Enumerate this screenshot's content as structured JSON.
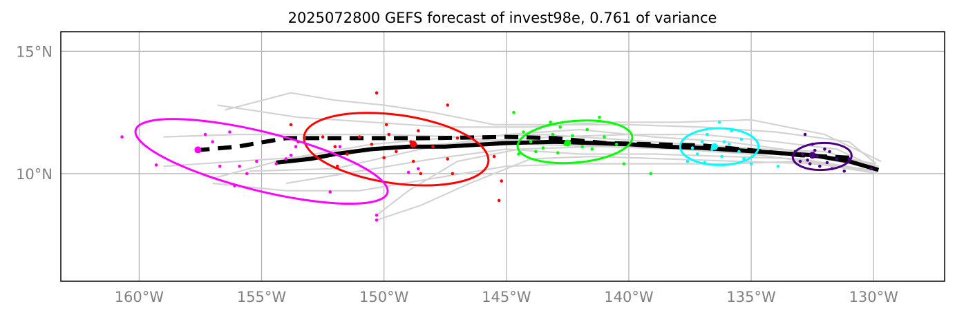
{
  "chart_data": {
    "type": "scatter",
    "title": "2025072800 GEFS forecast of invest98e, 0.761 of variance",
    "xlim": [
      -163.2,
      -127.1
    ],
    "ylim": [
      5.6,
      15.8
    ],
    "x_ticks": [
      -160,
      -155,
      -150,
      -145,
      -140,
      -135,
      -130
    ],
    "x_tick_labels": [
      "160°W",
      "155°W",
      "150°W",
      "145°W",
      "140°W",
      "135°W",
      "130°W"
    ],
    "y_ticks": [
      10,
      15
    ],
    "y_tick_labels": [
      "10°N",
      "15°N"
    ],
    "grid": true,
    "colors": {
      "ensemble": "#d3d3d3",
      "mean": "#000000",
      "groups": [
        "#4b0082",
        "#00ffff",
        "#00ff00",
        "#ff0000",
        "#ff00ff"
      ]
    },
    "ensemble_tracks": [
      [
        [
          -129.8,
          10.2
        ],
        [
          -131.5,
          11.0
        ],
        [
          -134,
          11.3
        ],
        [
          -137,
          11.6
        ],
        [
          -140,
          11.6
        ],
        [
          -143,
          11.5
        ],
        [
          -146.5,
          11.3
        ],
        [
          -150,
          11.0
        ],
        [
          -153,
          10.7
        ],
        [
          -156,
          10.5
        ],
        [
          -159,
          10.3
        ]
      ],
      [
        [
          -129.9,
          10.4
        ],
        [
          -131,
          11.3
        ],
        [
          -134,
          11.7
        ],
        [
          -137,
          11.9
        ],
        [
          -140,
          12.0
        ],
        [
          -143,
          12.0
        ],
        [
          -145.5,
          12.0
        ],
        [
          -148,
          12.5
        ],
        [
          -150,
          12.8
        ],
        [
          -152,
          13.0
        ],
        [
          -153.8,
          13.3
        ],
        [
          -156.5,
          12.6
        ]
      ],
      [
        [
          -129.8,
          10.0
        ],
        [
          -132,
          10.4
        ],
        [
          -135,
          10.8
        ],
        [
          -138,
          11.0
        ],
        [
          -141,
          11.1
        ],
        [
          -144,
          11.2
        ],
        [
          -147,
          11.5
        ],
        [
          -150,
          11.6
        ],
        [
          -153,
          11.6
        ],
        [
          -156,
          11.6
        ],
        [
          -159,
          11.5
        ]
      ],
      [
        [
          -129.8,
          10.3
        ],
        [
          -132,
          10.9
        ],
        [
          -134.5,
          11.0
        ],
        [
          -137.5,
          11.2
        ],
        [
          -140.5,
          11.4
        ],
        [
          -143.5,
          11.6
        ],
        [
          -147,
          11.5
        ],
        [
          -150.5,
          11.2
        ],
        [
          -154,
          10.6
        ],
        [
          -157,
          9.8
        ]
      ],
      [
        [
          -129.9,
          10.1
        ],
        [
          -133,
          10.6
        ],
        [
          -136,
          10.7
        ],
        [
          -139,
          10.8
        ],
        [
          -142,
          10.8
        ],
        [
          -145,
          11.0
        ],
        [
          -148,
          10.6
        ],
        [
          -151,
          10.1
        ],
        [
          -154,
          9.6
        ]
      ],
      [
        [
          -129.7,
          10.5
        ],
        [
          -132,
          11.6
        ],
        [
          -135,
          12.2
        ],
        [
          -138,
          12.1
        ],
        [
          -141,
          12.1
        ],
        [
          -144,
          11.9
        ],
        [
          -147.5,
          11.9
        ],
        [
          -150.5,
          12.1
        ],
        [
          -153.5,
          12.3
        ],
        [
          -156.8,
          12.8
        ]
      ],
      [
        [
          -129.8,
          10.0
        ],
        [
          -133,
          10.5
        ],
        [
          -136,
          10.4
        ],
        [
          -139,
          10.4
        ],
        [
          -142,
          10.4
        ],
        [
          -145,
          10.3
        ],
        [
          -148,
          9.8
        ],
        [
          -151,
          9.3
        ],
        [
          -154,
          9.3
        ],
        [
          -157,
          9.6
        ]
      ],
      [
        [
          -129.9,
          10.2
        ],
        [
          -132.5,
          10.7
        ],
        [
          -135.5,
          11.0
        ],
        [
          -138.5,
          11.1
        ],
        [
          -141.5,
          11.1
        ],
        [
          -144.5,
          11.0
        ],
        [
          -147,
          10.5
        ],
        [
          -149,
          9.3
        ],
        [
          -150.3,
          8.3
        ]
      ],
      [
        [
          -129.8,
          10.1
        ],
        [
          -132.5,
          10.4
        ],
        [
          -135.5,
          10.5
        ],
        [
          -138.5,
          10.6
        ],
        [
          -141.5,
          10.7
        ],
        [
          -144,
          10.6
        ],
        [
          -146.5,
          9.6
        ],
        [
          -148.5,
          8.7
        ],
        [
          -150.3,
          8.1
        ]
      ],
      [
        [
          -129.9,
          10.4
        ],
        [
          -133,
          10.9
        ],
        [
          -136,
          11.3
        ],
        [
          -139,
          11.5
        ],
        [
          -142,
          11.8
        ],
        [
          -145,
          11.6
        ],
        [
          -148.5,
          11.0
        ],
        [
          -152,
          10.2
        ],
        [
          -155.5,
          10.1
        ]
      ]
    ],
    "series": [
      {
        "values": [
          [
            -129.8,
            10.15
          ],
          [
            -131,
            10.5
          ],
          [
            -132.5,
            10.75
          ],
          [
            -134,
            10.85
          ],
          [
            -135.5,
            10.95
          ],
          [
            -137,
            11.05
          ],
          [
            -138.5,
            11.1
          ],
          [
            -140,
            11.2
          ],
          [
            -141.5,
            11.25
          ],
          [
            -143,
            11.3
          ],
          [
            -145,
            11.25
          ],
          [
            -147.5,
            11.1
          ],
          [
            -149,
            11.1
          ],
          [
            -150.5,
            11.0
          ],
          [
            -152,
            10.8
          ],
          [
            -153,
            10.6
          ],
          [
            -154.4,
            10.45
          ]
        ],
        "style": "solid"
      },
      {
        "values": [
          [
            -131,
            10.65
          ],
          [
            -133,
            10.75
          ],
          [
            -135,
            10.95
          ],
          [
            -137,
            11.15
          ],
          [
            -139,
            11.2
          ],
          [
            -141,
            11.25
          ],
          [
            -143,
            11.45
          ],
          [
            -145,
            11.5
          ],
          [
            -148,
            11.45
          ],
          [
            -151,
            11.45
          ],
          [
            -154,
            11.45
          ],
          [
            -156,
            11.1
          ],
          [
            -157.7,
            10.95
          ]
        ],
        "style": "dashed"
      }
    ],
    "groups": [
      {
        "color": "#4b0082",
        "centroid": [
          -132.5,
          10.75
        ],
        "ellipse": {
          "center": [
            -132.1,
            10.7
          ],
          "rx": 1.2,
          "ry": 0.55,
          "angle": -2
        },
        "points": [
          [
            -132.8,
            11.6
          ],
          [
            -132.5,
            11.2
          ],
          [
            -132.0,
            11.0
          ],
          [
            -131.8,
            10.9
          ],
          [
            -132.9,
            10.8
          ],
          [
            -132.3,
            10.7
          ],
          [
            -131.5,
            10.6
          ],
          [
            -133.0,
            10.5
          ],
          [
            -132.6,
            10.4
          ],
          [
            -132.2,
            10.3
          ],
          [
            -131.7,
            10.2
          ],
          [
            -131.2,
            10.1
          ],
          [
            -133.2,
            10.9
          ],
          [
            -132.4,
            10.95
          ],
          [
            -130.1,
            10.2
          ],
          [
            -131.0,
            10.6
          ],
          [
            -132.7,
            10.55
          ],
          [
            -131.9,
            10.45
          ]
        ]
      },
      {
        "color": "#00ffff",
        "centroid": [
          -136.5,
          11.1
        ],
        "ellipse": {
          "center": [
            -136.3,
            11.1
          ],
          "rx": 1.6,
          "ry": 0.75,
          "angle": 0
        },
        "points": [
          [
            -136.3,
            12.1
          ],
          [
            -135.8,
            11.75
          ],
          [
            -136.8,
            11.6
          ],
          [
            -135.4,
            11.4
          ],
          [
            -137.0,
            11.3
          ],
          [
            -135.9,
            11.2
          ],
          [
            -137.4,
            11.05
          ],
          [
            -136.6,
            11.0
          ],
          [
            -135.5,
            10.9
          ],
          [
            -137.2,
            10.8
          ],
          [
            -136.2,
            10.7
          ],
          [
            -135.3,
            10.6
          ],
          [
            -136.9,
            10.45
          ],
          [
            -135.0,
            10.4
          ],
          [
            -133.9,
            10.3
          ],
          [
            -137.6,
            10.5
          ],
          [
            -136.1,
            11.3
          ]
        ]
      },
      {
        "color": "#00ff00",
        "centroid": [
          -142.5,
          11.25
        ],
        "ellipse": {
          "center": [
            -142.2,
            11.3
          ],
          "rx": 2.35,
          "ry": 0.85,
          "angle": -5
        },
        "points": [
          [
            -144.7,
            12.5
          ],
          [
            -141.2,
            12.3
          ],
          [
            -143.2,
            12.1
          ],
          [
            -142.8,
            11.9
          ],
          [
            -141.7,
            11.8
          ],
          [
            -144.3,
            11.7
          ],
          [
            -143.1,
            11.6
          ],
          [
            -142.3,
            11.55
          ],
          [
            -141.0,
            11.5
          ],
          [
            -144.0,
            11.3
          ],
          [
            -142.6,
            11.2
          ],
          [
            -140.5,
            11.2
          ],
          [
            -143.5,
            11.05
          ],
          [
            -141.5,
            11.0
          ],
          [
            -144.5,
            10.8
          ],
          [
            -142.9,
            10.85
          ],
          [
            -140.2,
            10.4
          ],
          [
            -139.1,
            10.0
          ],
          [
            -143.8,
            10.9
          ],
          [
            -141.9,
            11.1
          ]
        ]
      },
      {
        "color": "#ff0000",
        "centroid": [
          -148.8,
          11.2
        ],
        "ellipse": {
          "center": [
            -149.5,
            11.0
          ],
          "rx": 3.8,
          "ry": 1.4,
          "angle": 8
        },
        "points": [
          [
            -150.3,
            13.3
          ],
          [
            -147.4,
            12.8
          ],
          [
            -149.9,
            12.0
          ],
          [
            -153.8,
            12.0
          ],
          [
            -148.6,
            11.75
          ],
          [
            -149.8,
            11.6
          ],
          [
            -151.0,
            11.5
          ],
          [
            -147.0,
            11.45
          ],
          [
            -148.9,
            11.3
          ],
          [
            -150.5,
            11.2
          ],
          [
            -152.0,
            11.1
          ],
          [
            -148.0,
            11.1
          ],
          [
            -149.5,
            10.9
          ],
          [
            -151.5,
            10.8
          ],
          [
            -150.0,
            10.65
          ],
          [
            -147.4,
            10.6
          ],
          [
            -145.5,
            10.7
          ],
          [
            -148.8,
            10.5
          ],
          [
            -151.9,
            10.3
          ],
          [
            -148.5,
            10.0
          ],
          [
            -147.2,
            10.0
          ],
          [
            -145.2,
            9.7
          ],
          [
            -145.3,
            8.9
          ],
          [
            -152.5,
            11.5
          ],
          [
            -153.5,
            11.3
          ]
        ]
      },
      {
        "color": "#ff00ff",
        "centroid": [
          -157.6,
          10.97
        ],
        "ellipse": {
          "center": [
            -155.0,
            10.5
          ],
          "rx": 5.3,
          "ry": 1.2,
          "angle": 14
        },
        "points": [
          [
            -160.7,
            11.5
          ],
          [
            -157.3,
            11.6
          ],
          [
            -156.3,
            11.7
          ],
          [
            -153.6,
            11.1
          ],
          [
            -151.8,
            11.1
          ],
          [
            -157.0,
            11.3
          ],
          [
            -153.8,
            10.75
          ],
          [
            -154.0,
            10.6
          ],
          [
            -155.2,
            10.5
          ],
          [
            -159.3,
            10.35
          ],
          [
            -156.7,
            10.3
          ],
          [
            -155.9,
            10.3
          ],
          [
            -155.6,
            10.0
          ],
          [
            -148.6,
            10.2
          ],
          [
            -149.0,
            10.05
          ],
          [
            -152.2,
            9.25
          ],
          [
            -156.1,
            9.5
          ],
          [
            -150.3,
            8.3
          ],
          [
            -150.3,
            8.1
          ],
          [
            -154.4,
            10.4
          ]
        ]
      }
    ]
  }
}
